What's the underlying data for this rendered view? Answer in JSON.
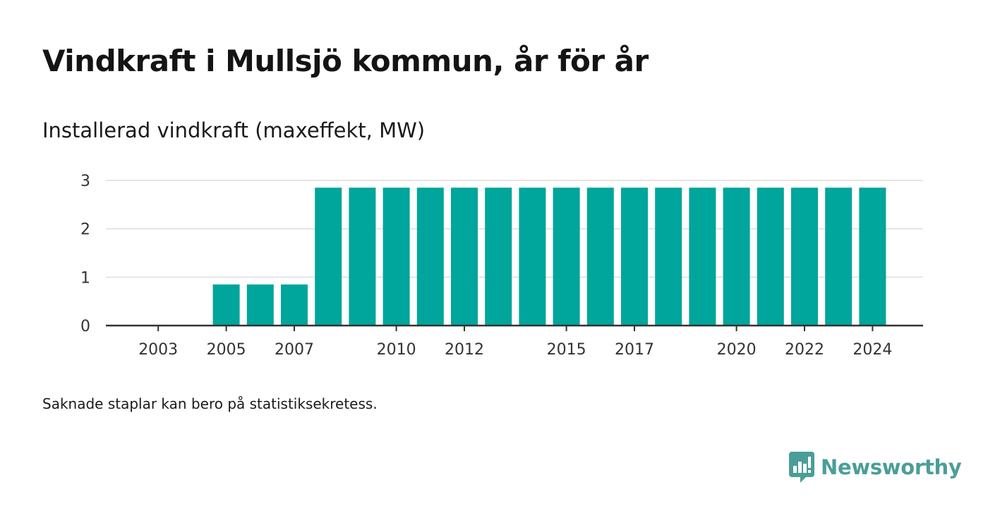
{
  "title": "Vindkraft i Mullsjö kommun, år för år",
  "subtitle": "Installerad vindkraft (maxeffekt, MW)",
  "footnote": "Saknade staplar kan bero på statistiksekretess.",
  "brand": {
    "name": "Newsworthy",
    "color": "#4a9e98",
    "logo_icon": "chart-speech-bubble-icon"
  },
  "chart_data": {
    "type": "bar",
    "categories": [
      "2002",
      "2003",
      "2004",
      "2005",
      "2006",
      "2007",
      "2008",
      "2009",
      "2010",
      "2011",
      "2012",
      "2013",
      "2014",
      "2015",
      "2016",
      "2017",
      "2018",
      "2019",
      "2020",
      "2021",
      "2022",
      "2023",
      "2024"
    ],
    "values": [
      0,
      0,
      0,
      0.85,
      0.85,
      0.85,
      2.85,
      2.85,
      2.85,
      2.85,
      2.85,
      2.85,
      2.85,
      2.85,
      2.85,
      2.85,
      2.85,
      2.85,
      2.85,
      2.85,
      2.85,
      2.85,
      2.85
    ],
    "x_tick_labels": [
      "2003",
      "2005",
      "2007",
      "2010",
      "2012",
      "2015",
      "2017",
      "2020",
      "2022",
      "2024"
    ],
    "y_ticks": [
      0,
      1,
      2,
      3
    ],
    "ylim": [
      0,
      3
    ],
    "bar_color": "#00a59b",
    "grid": true,
    "legend": "none",
    "xlabel": "",
    "ylabel": ""
  }
}
